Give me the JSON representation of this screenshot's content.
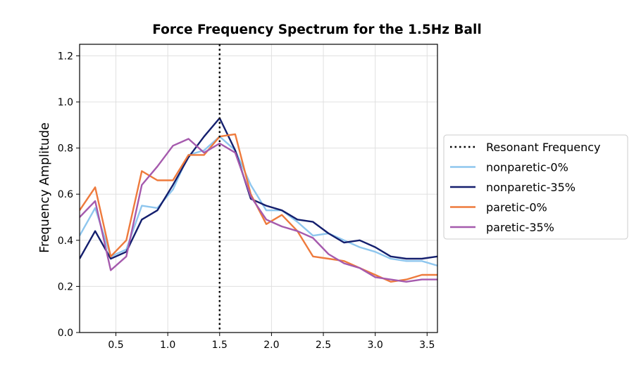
{
  "chart_data": {
    "type": "line",
    "title": "Force Frequency Spectrum for the 1.5Hz Ball",
    "xlabel": "",
    "ylabel": "Frequency Amplitude",
    "xlim": [
      0.15,
      3.6
    ],
    "ylim": [
      0.0,
      1.25
    ],
    "xticks": [
      0.5,
      1.0,
      1.5,
      2.0,
      2.5,
      3.0,
      3.5
    ],
    "xtick_labels": [
      "0.5",
      "1.0",
      "1.5",
      "2.0",
      "2.5",
      "3.0",
      "3.5"
    ],
    "yticks": [
      0.0,
      0.2,
      0.4,
      0.6,
      0.8,
      1.0,
      1.2
    ],
    "ytick_labels": [
      "0.0",
      "0.2",
      "0.4",
      "0.6",
      "0.8",
      "1.0",
      "1.2"
    ],
    "grid": true,
    "legend_position": "outside-right",
    "reference_line": {
      "name": "Resonant Frequency",
      "x": 1.5,
      "style": "dotted",
      "color": "#000000"
    },
    "x": [
      0.15,
      0.3,
      0.45,
      0.6,
      0.75,
      0.9,
      1.05,
      1.2,
      1.35,
      1.5,
      1.65,
      1.8,
      1.95,
      2.1,
      2.25,
      2.4,
      2.55,
      2.7,
      2.85,
      3.0,
      3.15,
      3.3,
      3.45,
      3.6
    ],
    "series": [
      {
        "name": "nonparetic-0%",
        "color": "#8ec6ee",
        "values": [
          0.42,
          0.54,
          0.33,
          0.36,
          0.55,
          0.54,
          0.62,
          0.77,
          0.79,
          0.85,
          0.79,
          0.64,
          0.53,
          0.53,
          0.48,
          0.42,
          0.43,
          0.4,
          0.37,
          0.35,
          0.32,
          0.31,
          0.31,
          0.29
        ]
      },
      {
        "name": "nonparetic-35%",
        "color": "#141f6e",
        "values": [
          0.32,
          0.44,
          0.32,
          0.35,
          0.49,
          0.53,
          0.64,
          0.76,
          0.85,
          0.93,
          0.79,
          0.58,
          0.55,
          0.53,
          0.49,
          0.48,
          0.43,
          0.39,
          0.4,
          0.37,
          0.33,
          0.32,
          0.32,
          0.33
        ]
      },
      {
        "name": "paretic-0%",
        "color": "#ee7a3c",
        "values": [
          0.53,
          0.63,
          0.33,
          0.4,
          0.7,
          0.66,
          0.66,
          0.77,
          0.77,
          0.85,
          0.86,
          0.6,
          0.47,
          0.51,
          0.44,
          0.33,
          0.32,
          0.31,
          0.28,
          0.25,
          0.22,
          0.23,
          0.25,
          0.25
        ]
      },
      {
        "name": "paretic-35%",
        "color": "#a55aad",
        "values": [
          0.5,
          0.57,
          0.27,
          0.33,
          0.64,
          0.72,
          0.81,
          0.84,
          0.78,
          0.82,
          0.78,
          0.59,
          0.49,
          0.46,
          0.44,
          0.41,
          0.34,
          0.3,
          0.28,
          0.24,
          0.23,
          0.22,
          0.23,
          0.23
        ]
      }
    ]
  }
}
